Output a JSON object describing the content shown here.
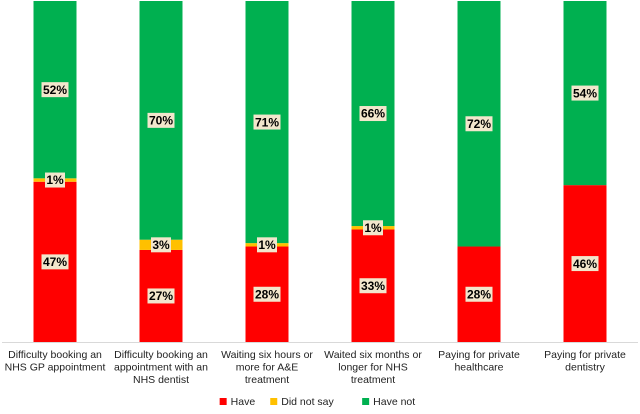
{
  "chart_data": {
    "type": "bar",
    "stacked": true,
    "percent": true,
    "categories": [
      [
        "Difficulty booking an",
        "NHS GP appointment"
      ],
      [
        "Difficulty booking an",
        "appointment with an",
        "NHS dentist"
      ],
      [
        "Waiting six hours or",
        "more for A&E",
        "treatment"
      ],
      [
        "Waited six months or",
        "longer for NHS",
        "treatment"
      ],
      [
        "Paying for private",
        "healthcare"
      ],
      [
        "Paying for private",
        "dentistry"
      ]
    ],
    "series": [
      {
        "name": "Have",
        "color": "#ff0000",
        "values": [
          47,
          27,
          28,
          33,
          28,
          46
        ],
        "labels": [
          "47%",
          "27%",
          "28%",
          "33%",
          "28%",
          "46%"
        ]
      },
      {
        "name": "Did not say",
        "color": "#ffc000",
        "values": [
          1,
          3,
          1,
          1,
          0,
          0
        ],
        "labels": [
          "1%",
          "3%",
          "1%",
          "1%",
          "",
          ""
        ]
      },
      {
        "name": "Have not",
        "color": "#00b050",
        "values": [
          52,
          70,
          71,
          66,
          72,
          54
        ],
        "labels": [
          "52%",
          "70%",
          "71%",
          "66%",
          "72%",
          "54%"
        ]
      }
    ],
    "ylim": [
      0,
      100
    ],
    "legend_position": "bottom",
    "title": "",
    "xlabel": "",
    "ylabel": ""
  }
}
